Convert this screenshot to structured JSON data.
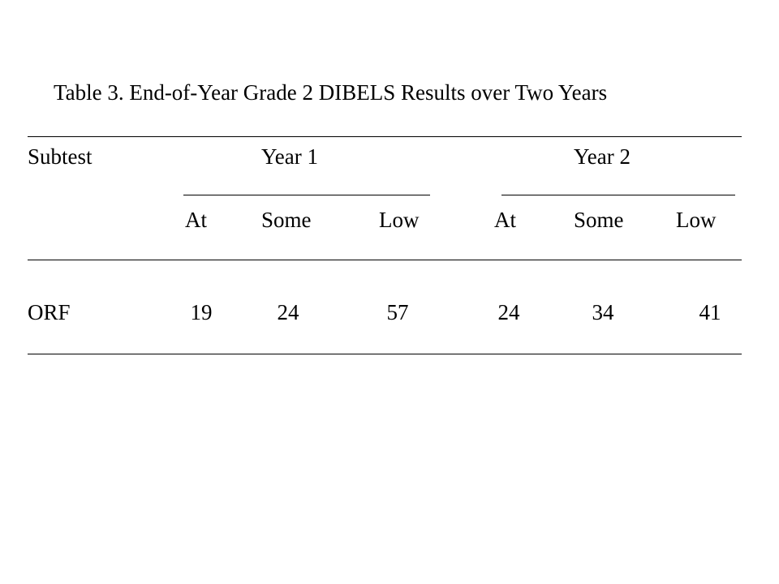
{
  "table": {
    "caption": "Table 3. End-of-Year Grade 2 DIBELS Results over Two Years",
    "header": {
      "subtest": "Subtest",
      "year1": "Year 1",
      "year2": "Year 2",
      "subcolumns_year1": [
        "At",
        "Some",
        "Low"
      ],
      "subcolumns_year2": [
        "At",
        "Some",
        "Low"
      ]
    },
    "rows": [
      {
        "subtest": "ORF",
        "year1": [
          "19",
          "24",
          "57"
        ],
        "year2": [
          "24",
          "34",
          "41"
        ]
      }
    ]
  }
}
